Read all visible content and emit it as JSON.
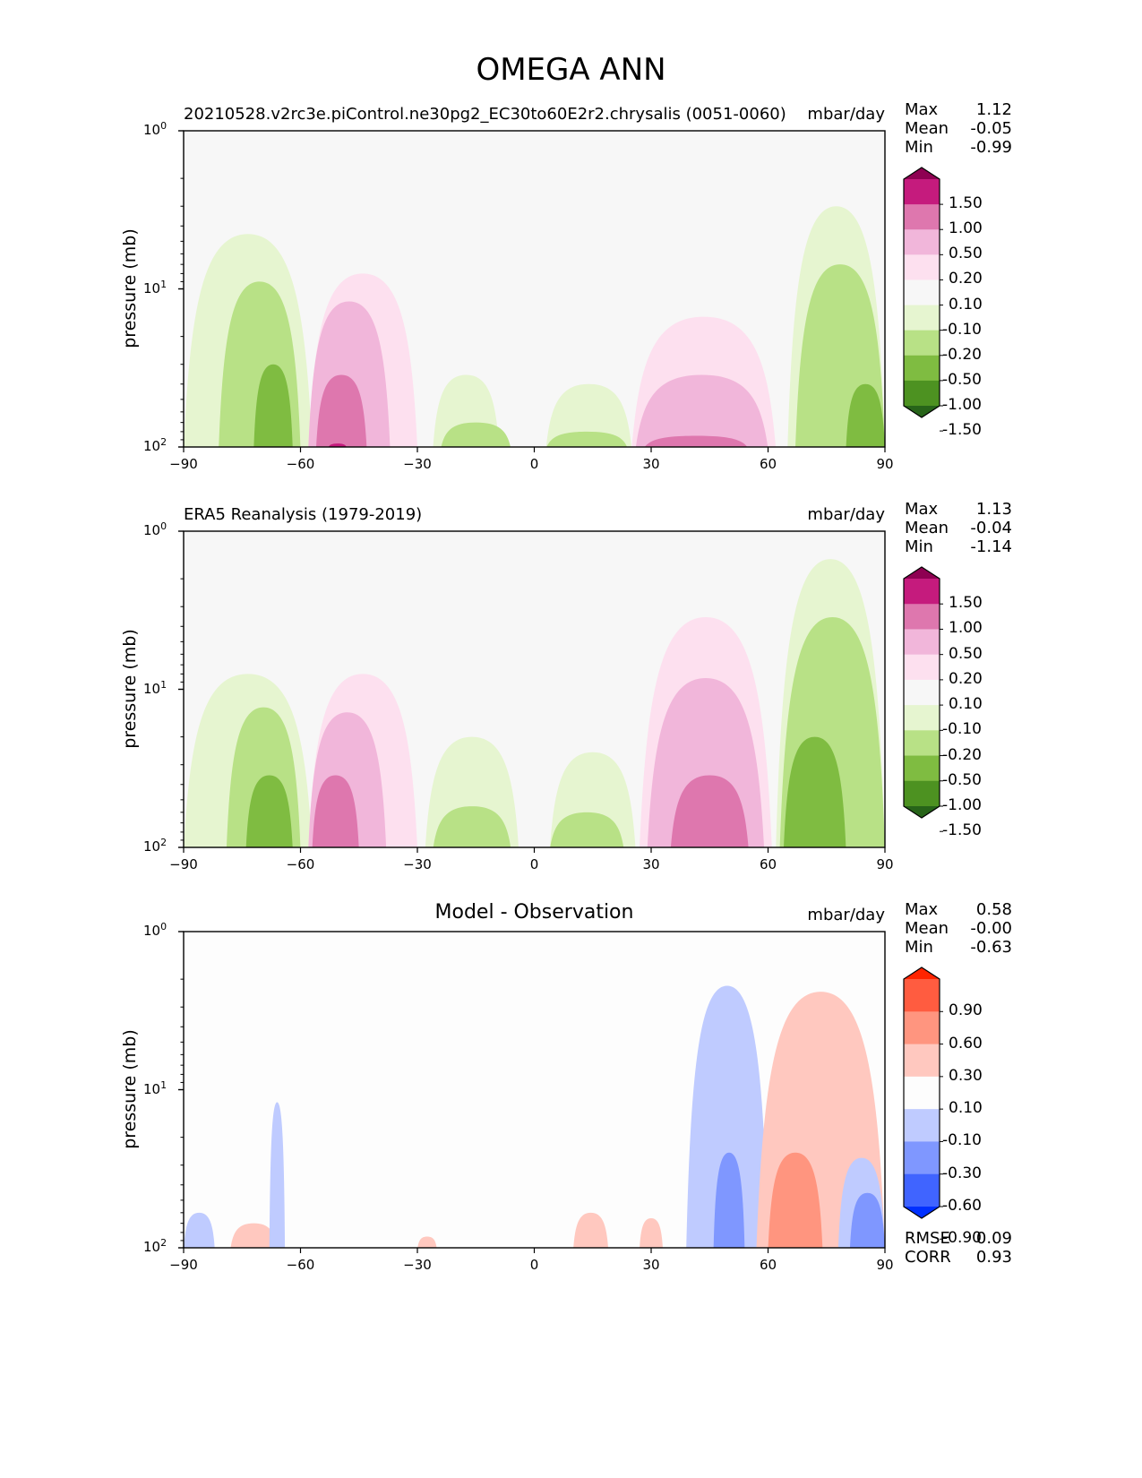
{
  "figure": {
    "title": "OMEGA ANN"
  },
  "chart_data": [
    {
      "type": "contour",
      "panel": "test",
      "title": "20210528.v2rc3e.piControl.ne30pg2_EC30to60E2r2.chrysalis (0051-0060)",
      "units": "mbar/day",
      "xlabel": "",
      "ylabel": "pressure (mb)",
      "xlim": [
        -90,
        90
      ],
      "ylim": [
        100,
        1
      ],
      "yscale": "log",
      "x_ticks": [
        "−90",
        "−60",
        "−30",
        "0",
        "30",
        "60",
        "90"
      ],
      "x_tick_values": [
        -90,
        -60,
        -30,
        0,
        30,
        60,
        90
      ],
      "y_ticks": [
        "10⁰",
        "10¹",
        "10²"
      ],
      "y_tick_values": [
        1,
        10,
        100
      ],
      "stats": {
        "Max": "1.12",
        "Mean": "-0.05",
        "Min": "-0.99"
      },
      "colorbar": {
        "levels": [
          "1.50",
          "1.00",
          "0.50",
          "0.20",
          "0.10",
          "-0.10",
          "-0.20",
          "-0.50",
          "-1.00",
          "-1.50"
        ],
        "colors": [
          "#8e0152",
          "#c51b7d",
          "#de77ae",
          "#f1b6da",
          "#fde0ef",
          "#f7f7f7",
          "#e6f5d0",
          "#b8e186",
          "#7fbc41",
          "#4d9221",
          "#276419"
        ],
        "extend": "both"
      },
      "regions": [
        {
          "band": "-0.20 to -0.10",
          "x_range": [
            -90,
            -57
          ],
          "top_pressure": 4.5
        },
        {
          "band": "-0.50 to -0.20",
          "x_range": [
            -81,
            -60
          ],
          "top_pressure": 9
        },
        {
          "band": "-1.00 to -0.50",
          "x_range": [
            -72,
            -62
          ],
          "top_pressure": 30
        },
        {
          "band": "0.10 to 0.20",
          "x_range": [
            -58,
            -30
          ],
          "top_pressure": 8
        },
        {
          "band": "0.20 to 0.50",
          "x_range": [
            -58,
            -37
          ],
          "top_pressure": 12
        },
        {
          "band": "0.50 to 1.00",
          "x_range": [
            -56,
            -43
          ],
          "top_pressure": 35
        },
        {
          "band": "1.00 to 1.50",
          "x_range": [
            -53,
            -48
          ],
          "top_pressure": 95
        },
        {
          "band": "-0.20 to -0.10",
          "x_range": [
            -26,
            -9
          ],
          "top_pressure": 35
        },
        {
          "band": "-0.50 to -0.20",
          "x_range": [
            -24,
            -6
          ],
          "top_pressure": 70
        },
        {
          "band": "-0.20 to -0.10",
          "x_range": [
            3,
            25
          ],
          "top_pressure": 40
        },
        {
          "band": "-0.50 to -0.20",
          "x_range": [
            3,
            24
          ],
          "top_pressure": 80
        },
        {
          "band": "0.10 to 0.20",
          "x_range": [
            25,
            62
          ],
          "top_pressure": 15
        },
        {
          "band": "0.20 to 0.50",
          "x_range": [
            26,
            60
          ],
          "top_pressure": 35
        },
        {
          "band": "0.50 to 1.00",
          "x_range": [
            28,
            55
          ],
          "top_pressure": 85
        },
        {
          "band": "-0.20 to -0.10",
          "x_range": [
            65,
            90
          ],
          "top_pressure": 3
        },
        {
          "band": "-0.50 to -0.20",
          "x_range": [
            67,
            90
          ],
          "top_pressure": 7
        },
        {
          "band": "-1.00 to -0.50",
          "x_range": [
            80,
            90
          ],
          "top_pressure": 40
        }
      ]
    },
    {
      "type": "contour",
      "panel": "reference",
      "title": "ERA5 Reanalysis (1979-2019)",
      "units": "mbar/day",
      "xlabel": "",
      "ylabel": "pressure (mb)",
      "xlim": [
        -90,
        90
      ],
      "ylim": [
        100,
        1
      ],
      "yscale": "log",
      "x_ticks": [
        "−90",
        "−60",
        "−30",
        "0",
        "30",
        "60",
        "90"
      ],
      "x_tick_values": [
        -90,
        -60,
        -30,
        0,
        30,
        60,
        90
      ],
      "y_ticks": [
        "10⁰",
        "10¹",
        "10²"
      ],
      "y_tick_values": [
        1,
        10,
        100
      ],
      "stats": {
        "Max": "1.13",
        "Mean": "-0.04",
        "Min": "-1.14"
      },
      "colorbar": {
        "levels": [
          "1.50",
          "1.00",
          "0.50",
          "0.20",
          "0.10",
          "-0.10",
          "-0.20",
          "-0.50",
          "-1.00",
          "-1.50"
        ],
        "colors": [
          "#8e0152",
          "#c51b7d",
          "#de77ae",
          "#f1b6da",
          "#fde0ef",
          "#f7f7f7",
          "#e6f5d0",
          "#b8e186",
          "#7fbc41",
          "#4d9221",
          "#276419"
        ],
        "extend": "both"
      },
      "regions": [
        {
          "band": "-0.20 to -0.10",
          "x_range": [
            -90,
            -57
          ],
          "top_pressure": 8
        },
        {
          "band": "-0.50 to -0.20",
          "x_range": [
            -79,
            -60
          ],
          "top_pressure": 13
        },
        {
          "band": "-1.00 to -0.50",
          "x_range": [
            -74,
            -62
          ],
          "top_pressure": 35
        },
        {
          "band": "0.10 to 0.20",
          "x_range": [
            -58,
            -30
          ],
          "top_pressure": 8
        },
        {
          "band": "0.20 to 0.50",
          "x_range": [
            -58,
            -38
          ],
          "top_pressure": 14
        },
        {
          "band": "0.50 to 1.00",
          "x_range": [
            -57,
            -45
          ],
          "top_pressure": 35
        },
        {
          "band": "-0.20 to -0.10",
          "x_range": [
            -28,
            -4
          ],
          "top_pressure": 20
        },
        {
          "band": "-0.50 to -0.20",
          "x_range": [
            -26,
            -6
          ],
          "top_pressure": 55
        },
        {
          "band": "-0.20 to -0.10",
          "x_range": [
            4,
            26
          ],
          "top_pressure": 25
        },
        {
          "band": "-0.50 to -0.20",
          "x_range": [
            4,
            23
          ],
          "top_pressure": 60
        },
        {
          "band": "0.10 to 0.20",
          "x_range": [
            27,
            61
          ],
          "top_pressure": 3.5
        },
        {
          "band": "0.20 to 0.50",
          "x_range": [
            29,
            59
          ],
          "top_pressure": 8.5
        },
        {
          "band": "0.50 to 1.00",
          "x_range": [
            35,
            55
          ],
          "top_pressure": 35
        },
        {
          "band": "-0.20 to -0.10",
          "x_range": [
            62,
            90
          ],
          "top_pressure": 1.5
        },
        {
          "band": "-0.50 to -0.20",
          "x_range": [
            63,
            90
          ],
          "top_pressure": 3.5
        },
        {
          "band": "-1.00 to -0.50",
          "x_range": [
            64,
            80
          ],
          "top_pressure": 20
        }
      ]
    },
    {
      "type": "contour",
      "panel": "difference",
      "title": "Model - Observation",
      "units": "mbar/day",
      "xlabel": "",
      "ylabel": "pressure (mb)",
      "xlim": [
        -90,
        90
      ],
      "ylim": [
        100,
        1
      ],
      "yscale": "log",
      "x_ticks": [
        "−90",
        "−60",
        "−30",
        "0",
        "30",
        "60",
        "90"
      ],
      "x_tick_values": [
        -90,
        -60,
        -30,
        0,
        30,
        60,
        90
      ],
      "y_ticks": [
        "10⁰",
        "10¹",
        "10²"
      ],
      "y_tick_values": [
        1,
        10,
        100
      ],
      "stats": {
        "Max": "0.58",
        "Mean": "-0.00",
        "Min": "-0.63",
        "RMSE": "0.09",
        "CORR": "0.93"
      },
      "colorbar": {
        "levels": [
          "0.90",
          "0.60",
          "0.30",
          "0.10",
          "-0.10",
          "-0.30",
          "-0.60",
          "-0.90"
        ],
        "colors": [
          "#ff2400",
          "#ff5c40",
          "#ff957f",
          "#ffc8bf",
          "#fdfdfd",
          "#bfcbff",
          "#7f97ff",
          "#4064ff",
          "#0030ff"
        ],
        "extend": "both"
      },
      "regions": [
        {
          "band": "-0.30 to -0.10",
          "x_range": [
            -90,
            -82
          ],
          "top_pressure": 60
        },
        {
          "band": "0.10 to 0.30",
          "x_range": [
            -78,
            -66
          ],
          "top_pressure": 70
        },
        {
          "band": "-0.30 to -0.10",
          "x_range": [
            -68,
            -64
          ],
          "top_pressure": 12
        },
        {
          "band": "0.10 to 0.30",
          "x_range": [
            -30,
            -25
          ],
          "top_pressure": 85
        },
        {
          "band": "0.10 to 0.30",
          "x_range": [
            10,
            19
          ],
          "top_pressure": 60
        },
        {
          "band": "0.10 to 0.30",
          "x_range": [
            27,
            33
          ],
          "top_pressure": 65
        },
        {
          "band": "-0.30 to -0.10",
          "x_range": [
            39,
            60
          ],
          "top_pressure": 2.2
        },
        {
          "band": "-0.60 to -0.30",
          "x_range": [
            46,
            54
          ],
          "top_pressure": 25
        },
        {
          "band": "0.10 to 0.30",
          "x_range": [
            57,
            90
          ],
          "top_pressure": 2.4
        },
        {
          "band": "0.30 to 0.60",
          "x_range": [
            60,
            74
          ],
          "top_pressure": 25
        },
        {
          "band": "-0.30 to -0.10",
          "x_range": [
            78,
            90
          ],
          "top_pressure": 27
        },
        {
          "band": "-0.60 to -0.30",
          "x_range": [
            81,
            90
          ],
          "top_pressure": 45
        }
      ]
    }
  ]
}
